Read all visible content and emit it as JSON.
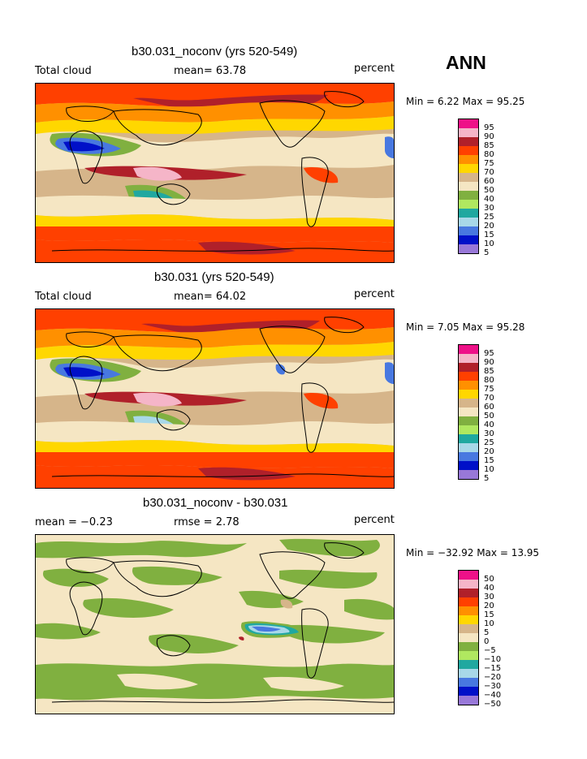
{
  "season": "ANN",
  "panels": [
    {
      "title": "b30.031_noconv (yrs 520-549)",
      "left_label": "Total cloud",
      "mean_text": "mean=  63.78",
      "units": "percent",
      "minmax": "Min =   6.22 Max =  95.25",
      "legend": [
        {
          "label": "95",
          "color": "#ee1188"
        },
        {
          "label": "90",
          "color": "#f5b5c8"
        },
        {
          "label": "85",
          "color": "#b0202a"
        },
        {
          "label": "80",
          "color": "#ff4000"
        },
        {
          "label": "75",
          "color": "#ff9000"
        },
        {
          "label": "70",
          "color": "#ffd700"
        },
        {
          "label": "60",
          "color": "#d6b58a"
        },
        {
          "label": "50",
          "color": "#f5e6c3"
        },
        {
          "label": "40",
          "color": "#80b040"
        },
        {
          "label": "30",
          "color": "#b0e860"
        },
        {
          "label": "25",
          "color": "#20a8a0"
        },
        {
          "label": "20",
          "color": "#a8d8e8"
        },
        {
          "label": "15",
          "color": "#4878e0"
        },
        {
          "label": "10",
          "color": "#0010c8"
        },
        {
          "label": "5",
          "color": "#9878d8"
        }
      ]
    },
    {
      "title": "b30.031 (yrs 520-549)",
      "left_label": "Total cloud",
      "mean_text": "mean=  64.02",
      "units": "percent",
      "minmax": "Min =   7.05 Max =  95.28",
      "legend": [
        {
          "label": "95",
          "color": "#ee1188"
        },
        {
          "label": "90",
          "color": "#f5b5c8"
        },
        {
          "label": "85",
          "color": "#b0202a"
        },
        {
          "label": "80",
          "color": "#ff4000"
        },
        {
          "label": "75",
          "color": "#ff9000"
        },
        {
          "label": "70",
          "color": "#ffd700"
        },
        {
          "label": "60",
          "color": "#d6b58a"
        },
        {
          "label": "50",
          "color": "#f5e6c3"
        },
        {
          "label": "40",
          "color": "#80b040"
        },
        {
          "label": "30",
          "color": "#b0e860"
        },
        {
          "label": "25",
          "color": "#20a8a0"
        },
        {
          "label": "20",
          "color": "#a8d8e8"
        },
        {
          "label": "15",
          "color": "#4878e0"
        },
        {
          "label": "10",
          "color": "#0010c8"
        },
        {
          "label": "5",
          "color": "#9878d8"
        }
      ]
    },
    {
      "title": "b30.031_noconv - b30.031",
      "left_label": "mean =  −0.23",
      "mean_text": "rmse =   2.78",
      "units": "percent",
      "minmax": "Min = −32.92 Max =  13.95",
      "legend": [
        {
          "label": "50",
          "color": "#ee1188"
        },
        {
          "label": "40",
          "color": "#f5b5c8"
        },
        {
          "label": "30",
          "color": "#b0202a"
        },
        {
          "label": "20",
          "color": "#ff4000"
        },
        {
          "label": "15",
          "color": "#ff9000"
        },
        {
          "label": "10",
          "color": "#ffd700"
        },
        {
          "label": "5",
          "color": "#d6b58a"
        },
        {
          "label": "0",
          "color": "#f5e6c3"
        },
        {
          "label": "−5",
          "color": "#80b040"
        },
        {
          "label": "−10",
          "color": "#b0e860"
        },
        {
          "label": "−15",
          "color": "#20a8a0"
        },
        {
          "label": "−20",
          "color": "#a8d8e8"
        },
        {
          "label": "−30",
          "color": "#4878e0"
        },
        {
          "label": "−40",
          "color": "#0010c8"
        },
        {
          "label": "−50",
          "color": "#9878d8"
        }
      ]
    }
  ]
}
